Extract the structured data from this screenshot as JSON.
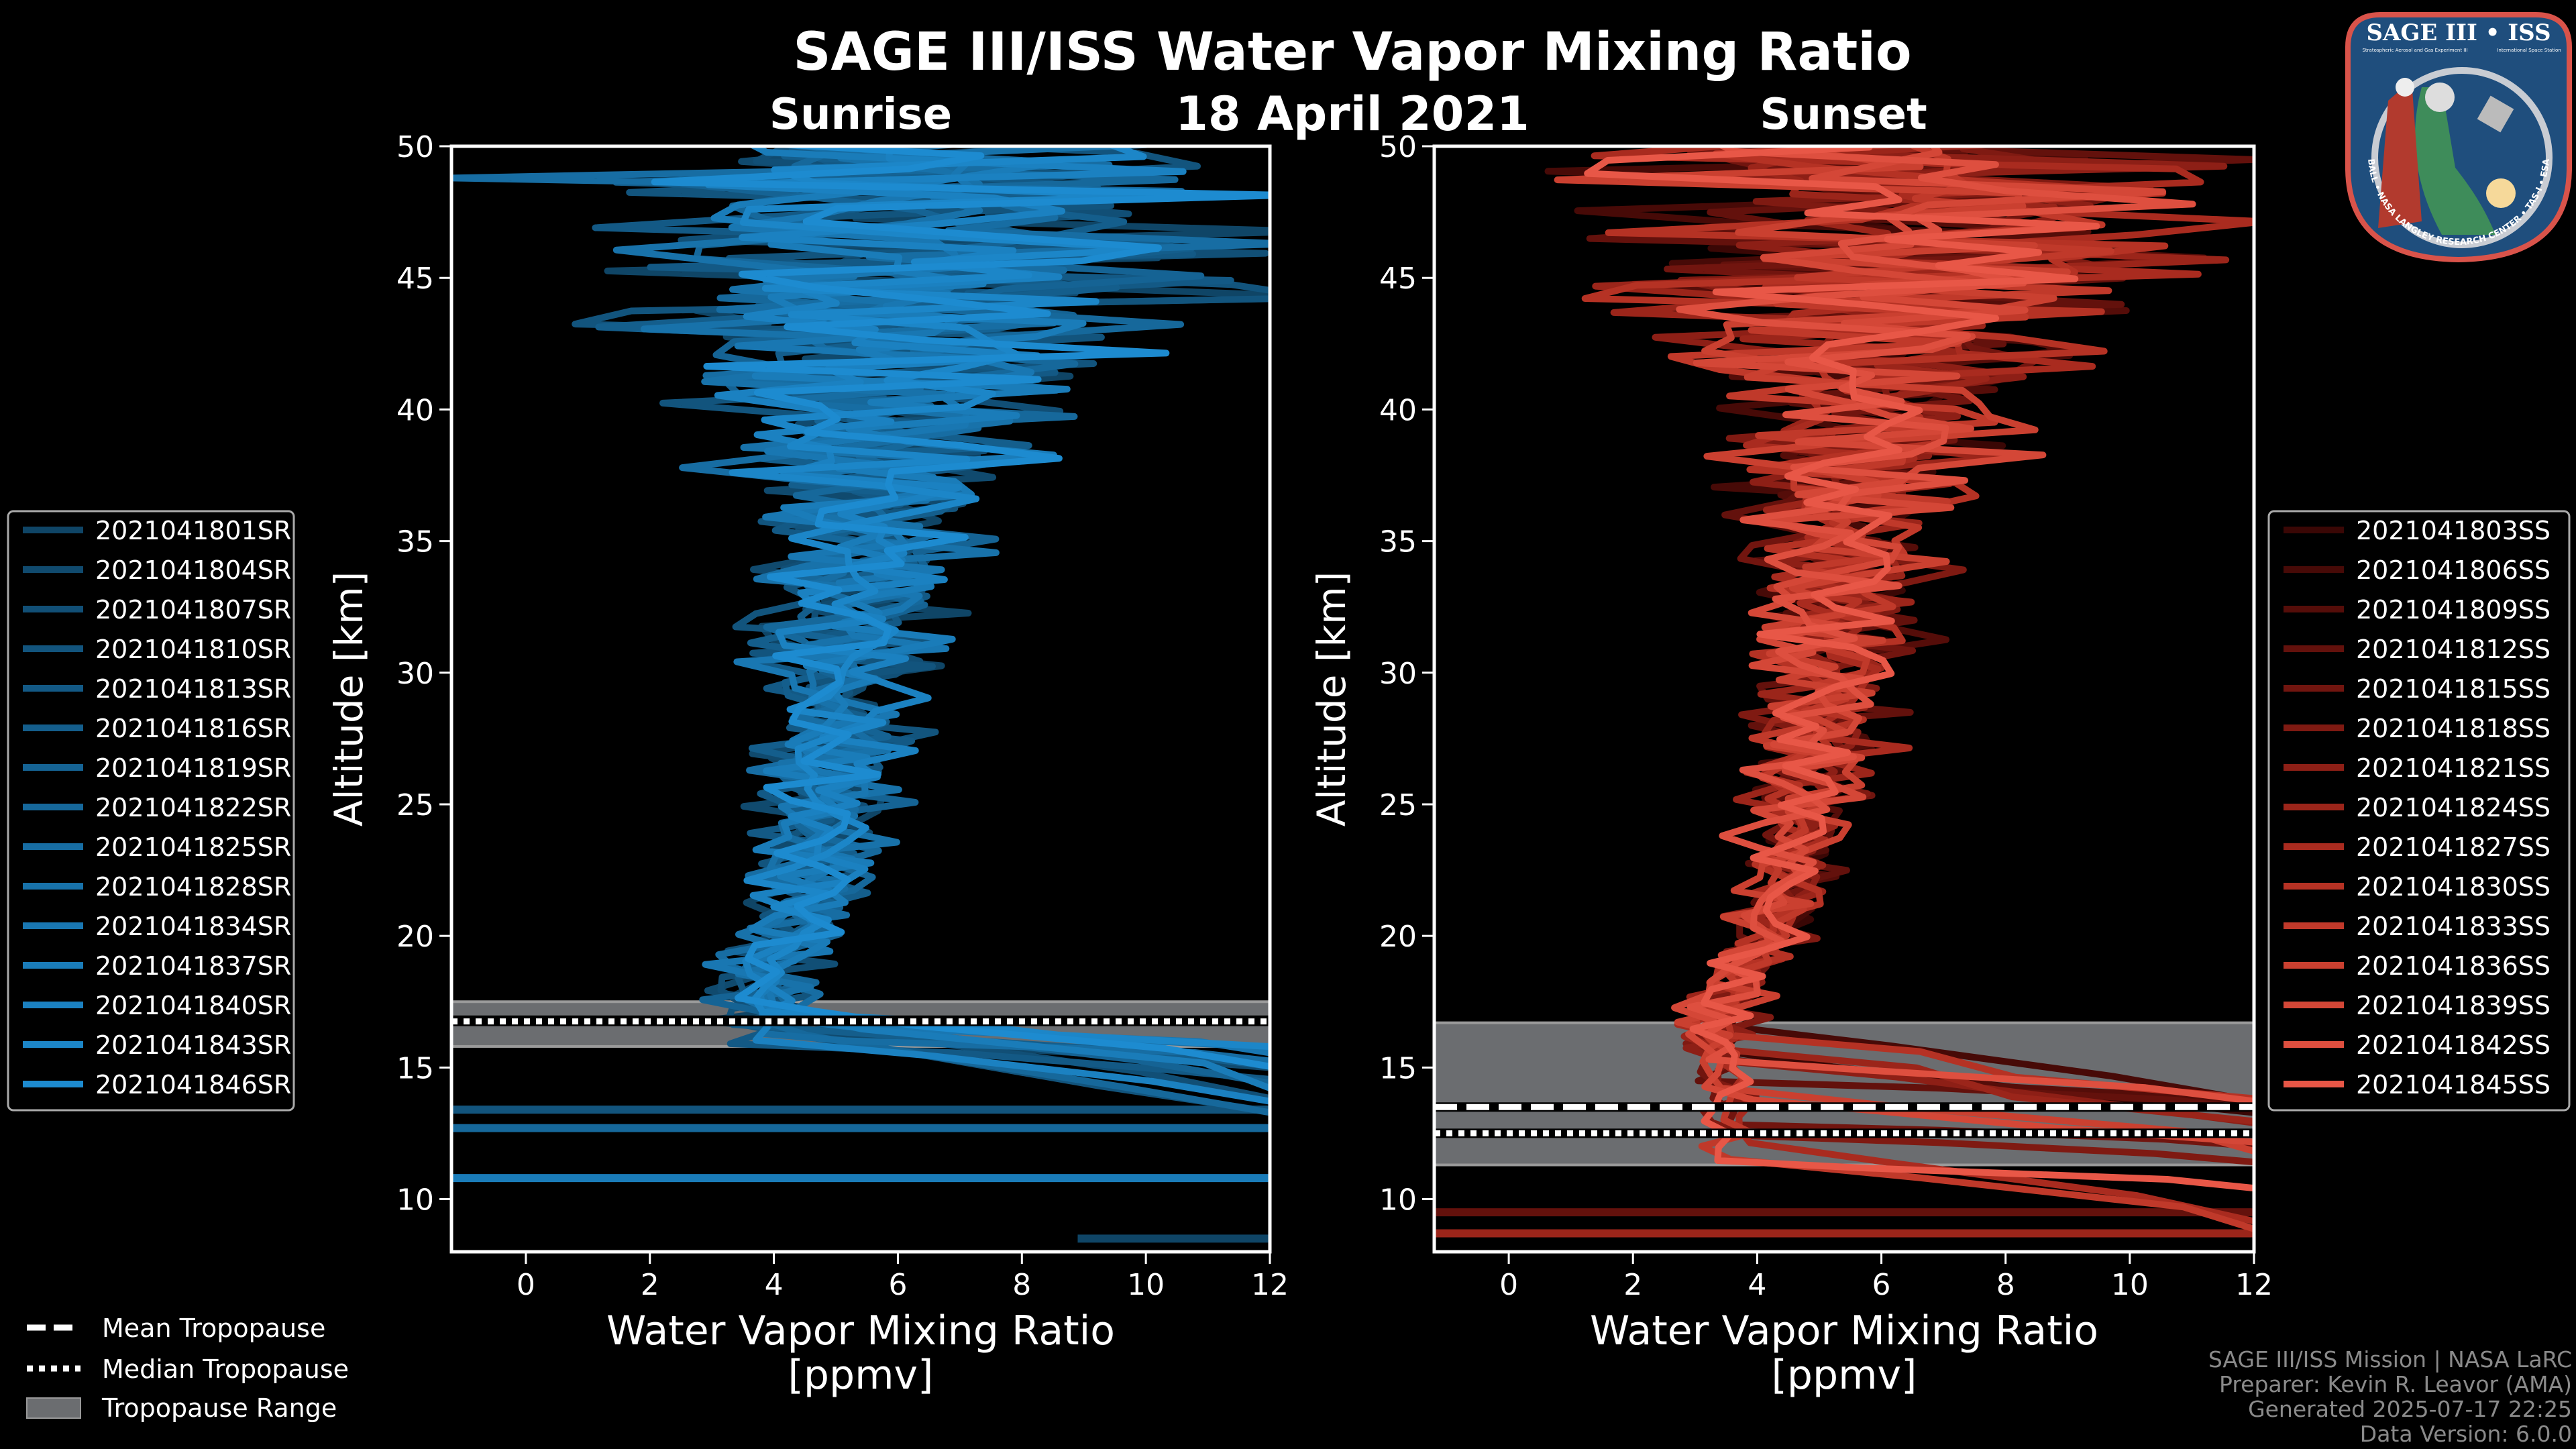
{
  "title": "SAGE III/ISS Water Vapor Mixing Ratio",
  "date": "18 April 2021",
  "logo": {
    "title": "SAGE III • ISS",
    "subtitle": "Stratospheric Aerosol and Gas Experiment III",
    "station": "International Space Station",
    "ring": "BALL • NASA LANGLEY RESEARCH CENTER • TAS-I • ESA"
  },
  "key_legend": [
    "Mean Tropopause",
    "Median Tropopause",
    "Tropopause Range"
  ],
  "footer": [
    "SAGE III/ISS Mission | NASA LaRC",
    "Preparer: Kevin R. Leavor (AMA)",
    "Generated 2025-07-17 22:25",
    "Data Version: 6.0.0"
  ],
  "chart_data": [
    {
      "type": "line",
      "title": "Sunrise",
      "xlabel": "Water Vapor Mixing Ratio",
      "xlabel_unit": "[ppmv]",
      "ylabel": "Altitude [km]",
      "xlim": [
        -1.2,
        12
      ],
      "ylim": [
        8,
        50
      ],
      "xticks": [
        0,
        2,
        4,
        6,
        8,
        10,
        12
      ],
      "yticks": [
        10,
        15,
        20,
        25,
        30,
        35,
        40,
        45,
        50
      ],
      "legend_position": "left",
      "series_colors": [
        "#0f4566",
        "#104a6e",
        "#114f76",
        "#12547d",
        "#135985",
        "#145e8c",
        "#156394",
        "#16689b",
        "#176da3",
        "#1872aa",
        "#1977b2",
        "#1a7cb9",
        "#1b81c1",
        "#1c86c8",
        "#1d8bd0"
      ],
      "series_names": [
        "2021041801SR",
        "2021041804SR",
        "2021041807SR",
        "2021041810SR",
        "2021041813SR",
        "2021041816SR",
        "2021041819SR",
        "2021041822SR",
        "2021041825SR",
        "2021041828SR",
        "2021041834SR",
        "2021041837SR",
        "2021041840SR",
        "2021041843SR",
        "2021041846SR"
      ],
      "approx_mean_profile": {
        "altitude": [
          16,
          18,
          20,
          22,
          25,
          28,
          30,
          33,
          35,
          38,
          40,
          43,
          45,
          48,
          50
        ],
        "value": [
          4.0,
          3.8,
          4.3,
          4.6,
          4.8,
          5.0,
          5.0,
          5.3,
          5.5,
          5.8,
          6.0,
          6.3,
          6.5,
          6.5,
          6.5
        ]
      },
      "approx_spread": {
        "altitude": [
          16,
          20,
          25,
          30,
          35,
          40,
          43,
          46,
          50
        ],
        "value": [
          0.6,
          0.6,
          0.8,
          1.0,
          1.3,
          2.0,
          3.0,
          4.0,
          4.0
        ]
      },
      "low_segments": [
        {
          "altitude": 13.4,
          "x": [
            -1.2,
            12
          ]
        },
        {
          "altitude": 12.7,
          "x": [
            -1.2,
            12
          ]
        },
        {
          "altitude": 10.8,
          "x": [
            -1.2,
            12
          ]
        },
        {
          "altitude": 8.5,
          "x": [
            8.9,
            12
          ]
        }
      ],
      "tropopause": {
        "mean": 16.8,
        "median": 16.75,
        "range": [
          15.8,
          17.5
        ]
      }
    },
    {
      "type": "line",
      "title": "Sunset",
      "xlabel": "Water Vapor Mixing Ratio",
      "xlabel_unit": "[ppmv]",
      "ylabel": "Altitude [km]",
      "xlim": [
        -1.2,
        12
      ],
      "ylim": [
        8,
        50
      ],
      "xticks": [
        0,
        2,
        4,
        6,
        8,
        10,
        12
      ],
      "yticks": [
        10,
        15,
        20,
        25,
        30,
        35,
        40,
        45,
        50
      ],
      "legend_position": "right",
      "series_colors": [
        "#3a0705",
        "#470a07",
        "#550d09",
        "#63110c",
        "#71150f",
        "#7f1a12",
        "#8d1f16",
        "#9b251a",
        "#a92b1f",
        "#b53224",
        "#c0392a",
        "#ca4030",
        "#d44737",
        "#de4f3f",
        "#e85747"
      ],
      "series_names": [
        "2021041803SS",
        "2021041806SS",
        "2021041809SS",
        "2021041812SS",
        "2021041815SS",
        "2021041818SS",
        "2021041821SS",
        "2021041824SS",
        "2021041827SS",
        "2021041830SS",
        "2021041833SS",
        "2021041836SS",
        "2021041839SS",
        "2021041842SS",
        "2021041845SS"
      ],
      "approx_mean_profile": {
        "altitude": [
          15,
          16,
          18,
          20,
          22,
          25,
          28,
          30,
          33,
          35,
          38,
          40,
          43,
          45,
          48,
          50
        ],
        "value": [
          3.5,
          3.2,
          3.5,
          4.2,
          4.5,
          4.8,
          5.0,
          5.2,
          5.4,
          5.5,
          5.8,
          6.0,
          6.3,
          6.5,
          6.5,
          6.5
        ]
      },
      "approx_spread": {
        "altitude": [
          15,
          20,
          25,
          30,
          35,
          40,
          43,
          46,
          50
        ],
        "value": [
          0.4,
          0.5,
          0.7,
          0.9,
          1.2,
          1.8,
          2.8,
          3.8,
          4.0
        ]
      },
      "low_segments": [
        {
          "altitude": 9.5,
          "x": [
            -1.2,
            12
          ]
        },
        {
          "altitude": 8.7,
          "x": [
            -1.2,
            12
          ]
        }
      ],
      "tropopause": {
        "mean": 13.5,
        "median": 12.5,
        "range": [
          11.3,
          16.7
        ]
      }
    }
  ]
}
